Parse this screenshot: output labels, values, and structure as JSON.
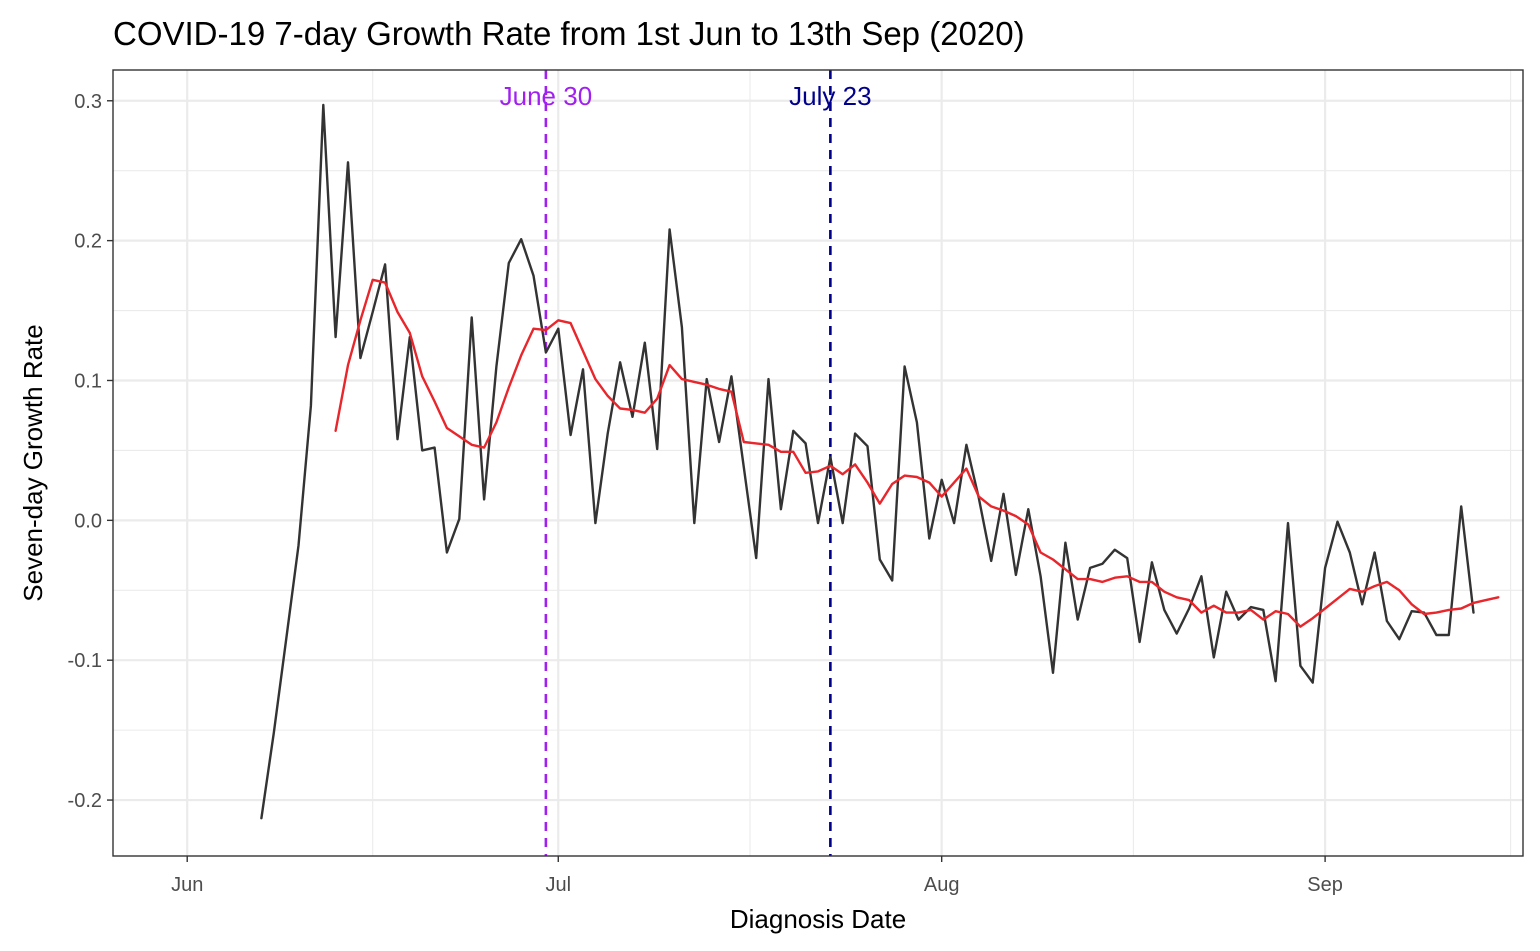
{
  "chart_data": {
    "type": "line",
    "title": "COVID-19 7-day Growth Rate from 1st Jun to 13th Sep (2020)",
    "xlabel": "Diagnosis Date",
    "ylabel": "Seven-day Growth Rate",
    "x_start": "2020-06-07",
    "xlim": [
      "2020-05-26",
      "2020-09-17"
    ],
    "ylim": [
      -0.24,
      0.322
    ],
    "x_ticks": [
      {
        "date": "2020-06-01",
        "label": "Jun"
      },
      {
        "date": "2020-07-01",
        "label": "Jul"
      },
      {
        "date": "2020-08-01",
        "label": "Aug"
      },
      {
        "date": "2020-09-01",
        "label": "Sep"
      }
    ],
    "y_ticks": [
      {
        "value": -0.2,
        "label": "-0.2"
      },
      {
        "value": -0.1,
        "label": "-0.1"
      },
      {
        "value": 0.0,
        "label": "0.0"
      },
      {
        "value": 0.1,
        "label": "0.1"
      },
      {
        "value": 0.2,
        "label": "0.2"
      },
      {
        "value": 0.3,
        "label": "0.3"
      }
    ],
    "grid": true,
    "series": [
      {
        "color": "#333333",
        "values": [
          -0.213,
          -0.152,
          -0.085,
          -0.018,
          0.082,
          0.297,
          0.131,
          0.256,
          0.116,
          0.149,
          0.183,
          0.058,
          0.131,
          0.05,
          0.052,
          -0.023,
          0.001,
          0.145,
          0.015,
          0.11,
          0.184,
          0.201,
          0.175,
          0.12,
          0.137,
          0.061,
          0.108,
          -0.002,
          0.062,
          0.113,
          0.074,
          0.127,
          0.051,
          0.208,
          0.138,
          -0.002,
          0.101,
          0.056,
          0.103,
          0.038,
          -0.027,
          0.101,
          0.008,
          0.064,
          0.055,
          -0.002,
          0.045,
          -0.002,
          0.062,
          0.053,
          -0.028,
          -0.043,
          0.11,
          0.07,
          -0.013,
          0.029,
          -0.002,
          0.054,
          0.016,
          -0.029,
          0.019,
          -0.039,
          0.008,
          -0.04,
          -0.109,
          -0.016,
          -0.071,
          -0.034,
          -0.031,
          -0.021,
          -0.027,
          -0.087,
          -0.03,
          -0.064,
          -0.081,
          -0.063,
          -0.04,
          -0.098,
          -0.051,
          -0.071,
          -0.062,
          -0.064,
          -0.115,
          -0.002,
          -0.104,
          -0.116,
          -0.034,
          -0.001,
          -0.023,
          -0.06,
          -0.023,
          -0.072,
          -0.085,
          -0.065,
          -0.066,
          -0.082,
          -0.082,
          0.01,
          -0.066
        ]
      },
      {
        "color": "#e8262b",
        "start_index": 6,
        "values": [
          0.064,
          0.111,
          0.143,
          0.172,
          0.17,
          0.149,
          0.134,
          0.103,
          0.085,
          0.066,
          0.06,
          0.054,
          0.052,
          0.07,
          0.095,
          0.118,
          0.137,
          0.136,
          0.143,
          0.141,
          0.121,
          0.101,
          0.089,
          0.08,
          0.079,
          0.077,
          0.087,
          0.111,
          0.101,
          0.099,
          0.097,
          0.094,
          0.092,
          0.056,
          0.055,
          0.054,
          0.049,
          0.049,
          0.034,
          0.035,
          0.039,
          0.033,
          0.04,
          0.027,
          0.012,
          0.026,
          0.032,
          0.031,
          0.027,
          0.017,
          0.027,
          0.037,
          0.017,
          0.01,
          0.007,
          0.003,
          -0.003,
          -0.023,
          -0.028,
          -0.035,
          -0.042,
          -0.042,
          -0.044,
          -0.041,
          -0.04,
          -0.044,
          -0.044,
          -0.051,
          -0.055,
          -0.057,
          -0.066,
          -0.061,
          -0.066,
          -0.066,
          -0.064,
          -0.071,
          -0.065,
          -0.067,
          -0.076,
          -0.07,
          -0.063,
          -0.056,
          -0.049,
          -0.051,
          -0.047,
          -0.044,
          -0.05,
          -0.06,
          -0.067,
          -0.066,
          -0.064,
          -0.063,
          -0.059,
          -0.057,
          -0.055
        ]
      }
    ],
    "annotations": [
      {
        "date": "2020-06-30",
        "label": "June 30",
        "color": "#a020f0"
      },
      {
        "date": "2020-07-23",
        "label": "July 23",
        "color": "#00008b"
      }
    ]
  }
}
